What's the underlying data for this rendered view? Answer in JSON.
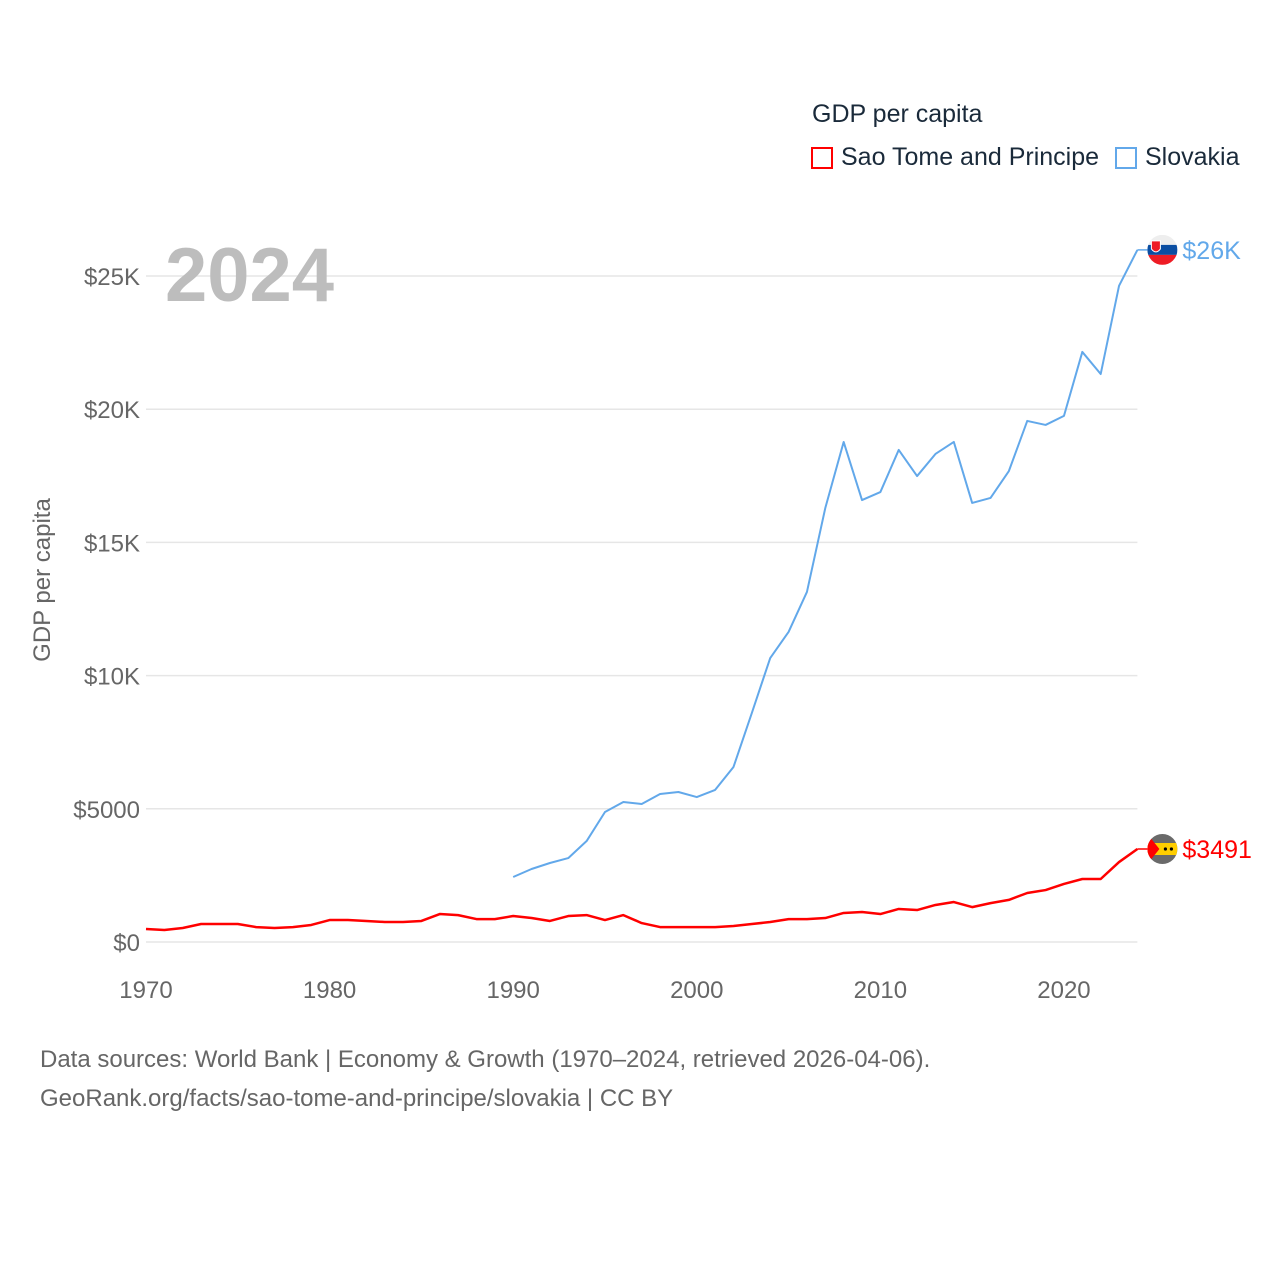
{
  "chart_data": {
    "type": "line",
    "title": "GDP per capita",
    "year_label": "2024",
    "xlabel": "",
    "ylabel": "GDP per capita",
    "xlim": [
      1970,
      2024
    ],
    "ylim": [
      0,
      26000
    ],
    "x_ticks": [
      1970,
      1980,
      1990,
      2000,
      2010,
      2020
    ],
    "x_tick_labels": [
      "1970",
      "1980",
      "1990",
      "2000",
      "2010",
      "2020"
    ],
    "y_ticks": [
      0,
      5000,
      10000,
      15000,
      20000,
      25000
    ],
    "y_tick_labels": [
      "$0",
      "$5000",
      "$10K",
      "$15K",
      "$20K",
      "$25K"
    ],
    "grid": true,
    "legend_position": "top-right",
    "series": [
      {
        "name": "Sao Tome and Principe",
        "color": "#ff0000",
        "end_label": "$3491",
        "x_start": 1970,
        "values": [
          490,
          450,
          525,
          675,
          675,
          675,
          560,
          525,
          560,
          640,
          825,
          825,
          790,
          750,
          750,
          790,
          1050,
          1010,
          860,
          860,
          975,
          900,
          790,
          975,
          1010,
          825,
          1010,
          710,
          560,
          560,
          560,
          560,
          600,
          675,
          750,
          860,
          860,
          900,
          1090,
          1125,
          1050,
          1240,
          1200,
          1390,
          1500,
          1310,
          1460,
          1580,
          1840,
          1950,
          2180,
          2365,
          2365,
          3000,
          3491
        ]
      },
      {
        "name": "Slovakia",
        "color": "#62a8ea",
        "end_label": "$26K",
        "x_start": 1990,
        "values": [
          2440,
          2740,
          2965,
          3150,
          3790,
          4880,
          5255,
          5180,
          5555,
          5630,
          5440,
          5710,
          6570,
          8600,
          10660,
          11640,
          13140,
          16290,
          18770,
          16590,
          16890,
          18470,
          17490,
          18320,
          18770,
          16480,
          16670,
          17680,
          19560,
          19410,
          19750,
          22150,
          21320,
          24630,
          25980
        ]
      }
    ]
  },
  "footer": {
    "line1": "Data sources: World Bank | Economy & Growth (1970–2024, retrieved 2026-04-06).",
    "line2": "GeoRank.org/facts/sao-tome-and-principe/slovakia | CC BY"
  }
}
